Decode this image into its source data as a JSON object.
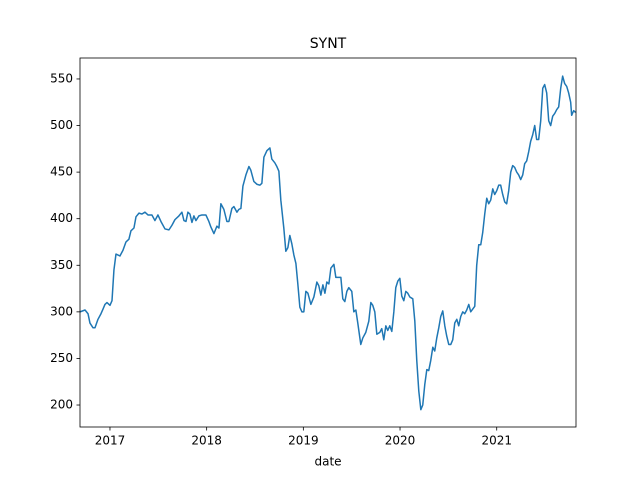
{
  "chart_data": {
    "type": "line",
    "title": "SYNT",
    "x_label": "date",
    "x": [
      2016.69,
      2016.742,
      2016.773,
      2016.793,
      2016.824,
      2016.845,
      2016.876,
      2016.907,
      2016.928,
      2016.948,
      2016.969,
      2017.0,
      2017.021,
      2017.041,
      2017.062,
      2017.103,
      2017.134,
      2017.165,
      2017.196,
      2017.217,
      2017.248,
      2017.269,
      2017.3,
      2017.331,
      2017.362,
      2017.393,
      2017.434,
      2017.465,
      2017.496,
      2017.527,
      2017.569,
      2017.61,
      2017.641,
      2017.672,
      2017.713,
      2017.744,
      2017.765,
      2017.786,
      2017.806,
      2017.827,
      2017.848,
      2017.868,
      2017.889,
      2017.92,
      2017.951,
      2017.992,
      2018.023,
      2018.044,
      2018.075,
      2018.106,
      2018.127,
      2018.147,
      2018.178,
      2018.209,
      2018.23,
      2018.261,
      2018.282,
      2018.313,
      2018.333,
      2018.354,
      2018.375,
      2018.406,
      2018.437,
      2018.457,
      2018.488,
      2018.519,
      2018.55,
      2018.571,
      2018.592,
      2018.623,
      2018.654,
      2018.674,
      2018.705,
      2018.726,
      2018.747,
      2018.767,
      2018.798,
      2018.819,
      2018.84,
      2018.86,
      2018.881,
      2018.902,
      2018.923,
      2018.943,
      2018.964,
      2018.985,
      2019.005,
      2019.026,
      2019.047,
      2019.078,
      2019.109,
      2019.14,
      2019.16,
      2019.181,
      2019.202,
      2019.223,
      2019.243,
      2019.264,
      2019.285,
      2019.316,
      2019.336,
      2019.367,
      2019.388,
      2019.408,
      2019.429,
      2019.45,
      2019.47,
      2019.501,
      2019.522,
      2019.543,
      2019.563,
      2019.594,
      2019.615,
      2019.646,
      2019.677,
      2019.698,
      2019.718,
      2019.739,
      2019.76,
      2019.791,
      2019.811,
      2019.832,
      2019.853,
      2019.873,
      2019.894,
      2019.915,
      2019.936,
      2019.956,
      2019.977,
      2019.998,
      2020.018,
      2020.039,
      2020.06,
      2020.08,
      2020.101,
      2020.132,
      2020.153,
      2020.173,
      2020.194,
      2020.215,
      2020.235,
      2020.256,
      2020.277,
      2020.297,
      2020.318,
      2020.339,
      2020.359,
      2020.38,
      2020.401,
      2020.421,
      2020.442,
      2020.463,
      2020.483,
      2020.504,
      2020.525,
      2020.545,
      2020.566,
      2020.587,
      2020.607,
      2020.628,
      2020.649,
      2020.669,
      2020.69,
      2020.711,
      2020.731,
      2020.752,
      2020.773,
      2020.793,
      2020.814,
      2020.835,
      2020.855,
      2020.876,
      2020.897,
      2020.917,
      2020.938,
      2020.959,
      2020.979,
      2021.0,
      2021.021,
      2021.041,
      2021.062,
      2021.083,
      2021.103,
      2021.124,
      2021.145,
      2021.165,
      2021.186,
      2021.207,
      2021.227,
      2021.248,
      2021.269,
      2021.289,
      2021.31,
      2021.331,
      2021.351,
      2021.372,
      2021.393,
      2021.413,
      2021.434,
      2021.455,
      2021.476,
      2021.496,
      2021.517,
      2021.538,
      2021.558,
      2021.579,
      2021.6,
      2021.62,
      2021.641,
      2021.662,
      2021.682,
      2021.703,
      2021.724,
      2021.744,
      2021.765,
      2021.775,
      2021.796,
      2021.816
    ],
    "series": [
      {
        "name": "SYNT",
        "color": "#1f77b4",
        "values": [
          300,
          302,
          298,
          288,
          283,
          283,
          292,
          298,
          303,
          308,
          310,
          307,
          312,
          345,
          362,
          360,
          366,
          375,
          378,
          387,
          390,
          402,
          406,
          405,
          407,
          404,
          404,
          398,
          404,
          397,
          389,
          388,
          393,
          399,
          403,
          407,
          398,
          397,
          407,
          405,
          396,
          403,
          398,
          403,
          404,
          404,
          397,
          391,
          384,
          392,
          390,
          416,
          410,
          397,
          397,
          411,
          413,
          407,
          410,
          411,
          435,
          447,
          456,
          452,
          440,
          437,
          436,
          438,
          466,
          473,
          476,
          464,
          460,
          456,
          451,
          420,
          390,
          365,
          369,
          382,
          373,
          361,
          352,
          330,
          305,
          300,
          300,
          322,
          320,
          308,
          316,
          332,
          328,
          318,
          329,
          320,
          332,
          330,
          347,
          351,
          337,
          337,
          337,
          314,
          311,
          322,
          326,
          322,
          300,
          302,
          288,
          265,
          272,
          278,
          290,
          310,
          307,
          300,
          276,
          278,
          282,
          270,
          285,
          280,
          285,
          279,
          300,
          326,
          333,
          336,
          317,
          312,
          322,
          320,
          316,
          314,
          290,
          248,
          215,
          195,
          200,
          222,
          238,
          237,
          248,
          262,
          258,
          272,
          283,
          295,
          301,
          285,
          274,
          265,
          265,
          270,
          288,
          292,
          285,
          295,
          300,
          298,
          302,
          308,
          300,
          303,
          306,
          350,
          372,
          372,
          385,
          405,
          422,
          416,
          420,
          432,
          426,
          430,
          436,
          436,
          426,
          418,
          416,
          430,
          450,
          457,
          455,
          450,
          447,
          442,
          447,
          459,
          462,
          472,
          483,
          490,
          500,
          485,
          485,
          505,
          540,
          544,
          535,
          505,
          500,
          510,
          513,
          517,
          520,
          540,
          553,
          545,
          542,
          535,
          525,
          511,
          516,
          514
        ]
      }
    ],
    "xlim": [
      2016.69,
      2021.82
    ],
    "xticks": [
      2017,
      2018,
      2019,
      2020,
      2021
    ],
    "ylim": [
      176.4,
      572.5
    ],
    "yticks": [
      200,
      250,
      300,
      350,
      400,
      450,
      500,
      550
    ]
  }
}
